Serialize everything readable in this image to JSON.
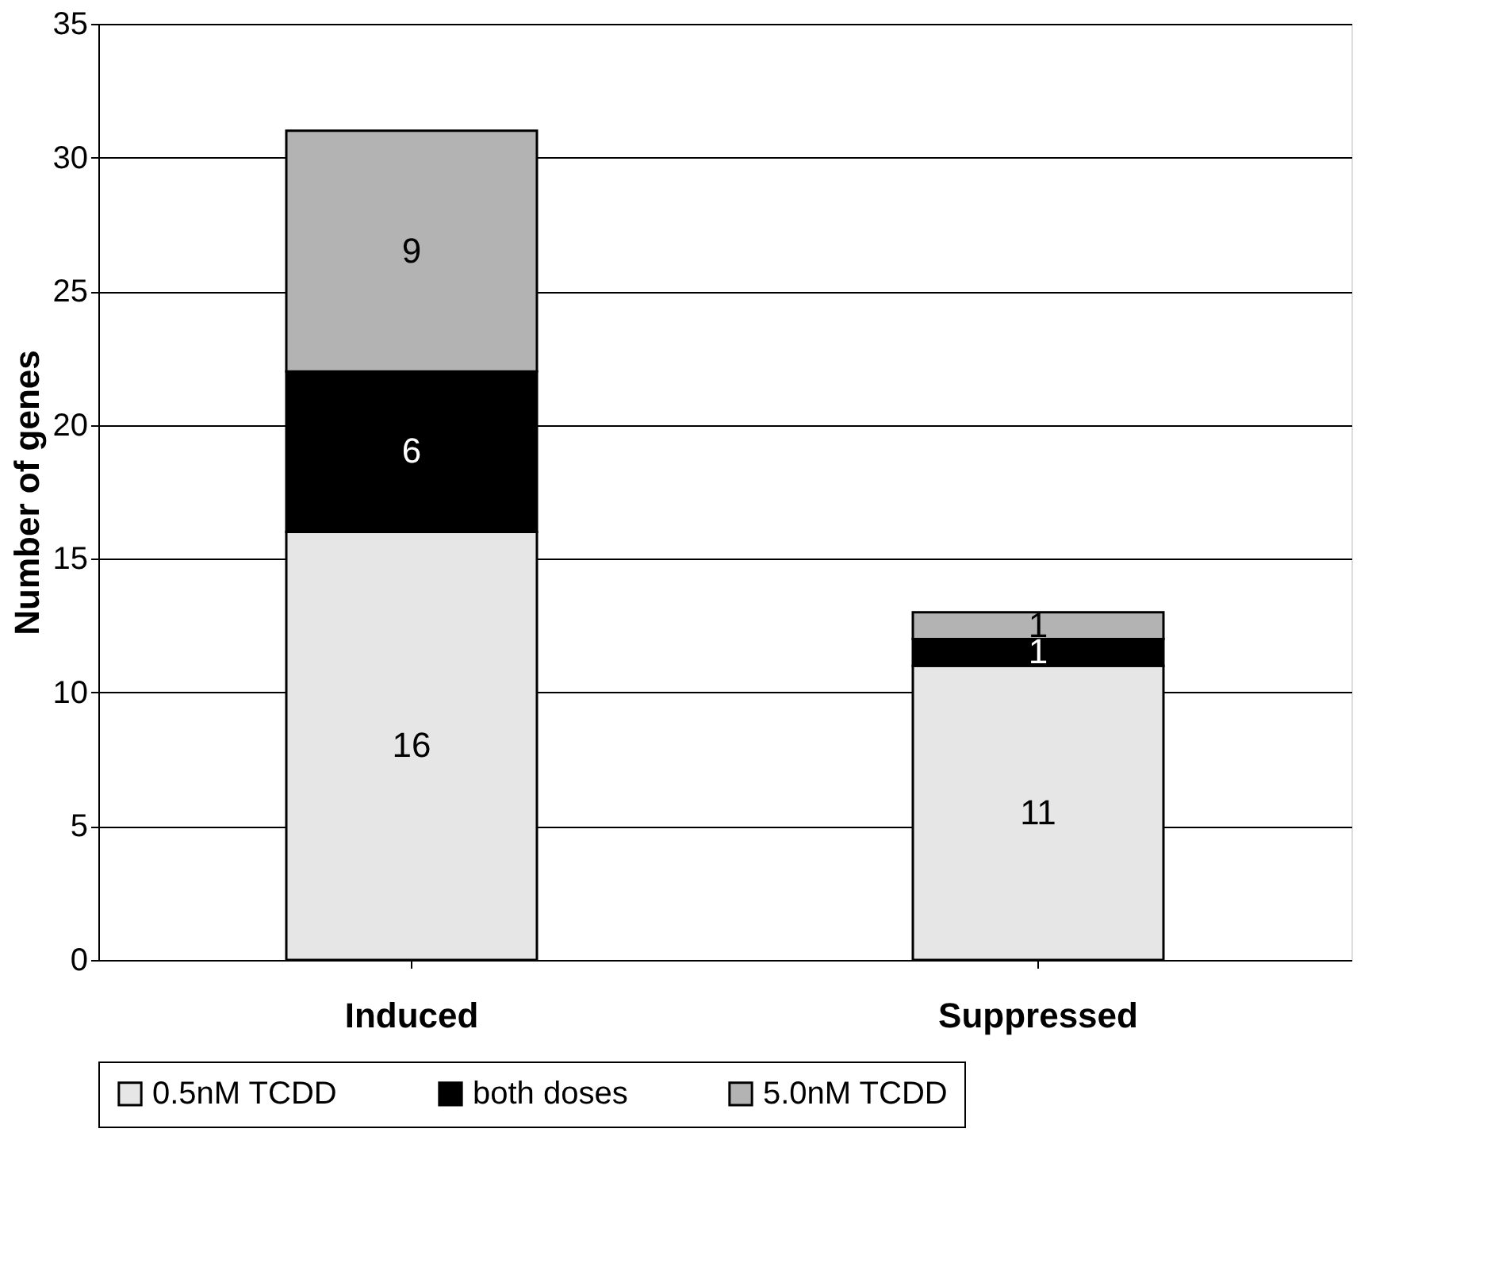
{
  "chart_data": {
    "type": "bar",
    "stacked": true,
    "ylabel": "Number of genes",
    "categories": [
      "Induced",
      "Suppressed"
    ],
    "series": [
      {
        "name": "0.5nM TCDD",
        "color": "#e6e6e6",
        "values": [
          16,
          11
        ]
      },
      {
        "name": "both doses",
        "color": "#000000",
        "values": [
          6,
          1
        ]
      },
      {
        "name": "5.0nM TCDD",
        "color": "#b3b3b3",
        "values": [
          9,
          1
        ]
      }
    ],
    "ylim": [
      0,
      35
    ],
    "yticks": [
      0,
      5,
      10,
      15,
      20,
      25,
      30,
      35
    ],
    "grid": "y",
    "legend": "bottom",
    "data_labels": true
  }
}
